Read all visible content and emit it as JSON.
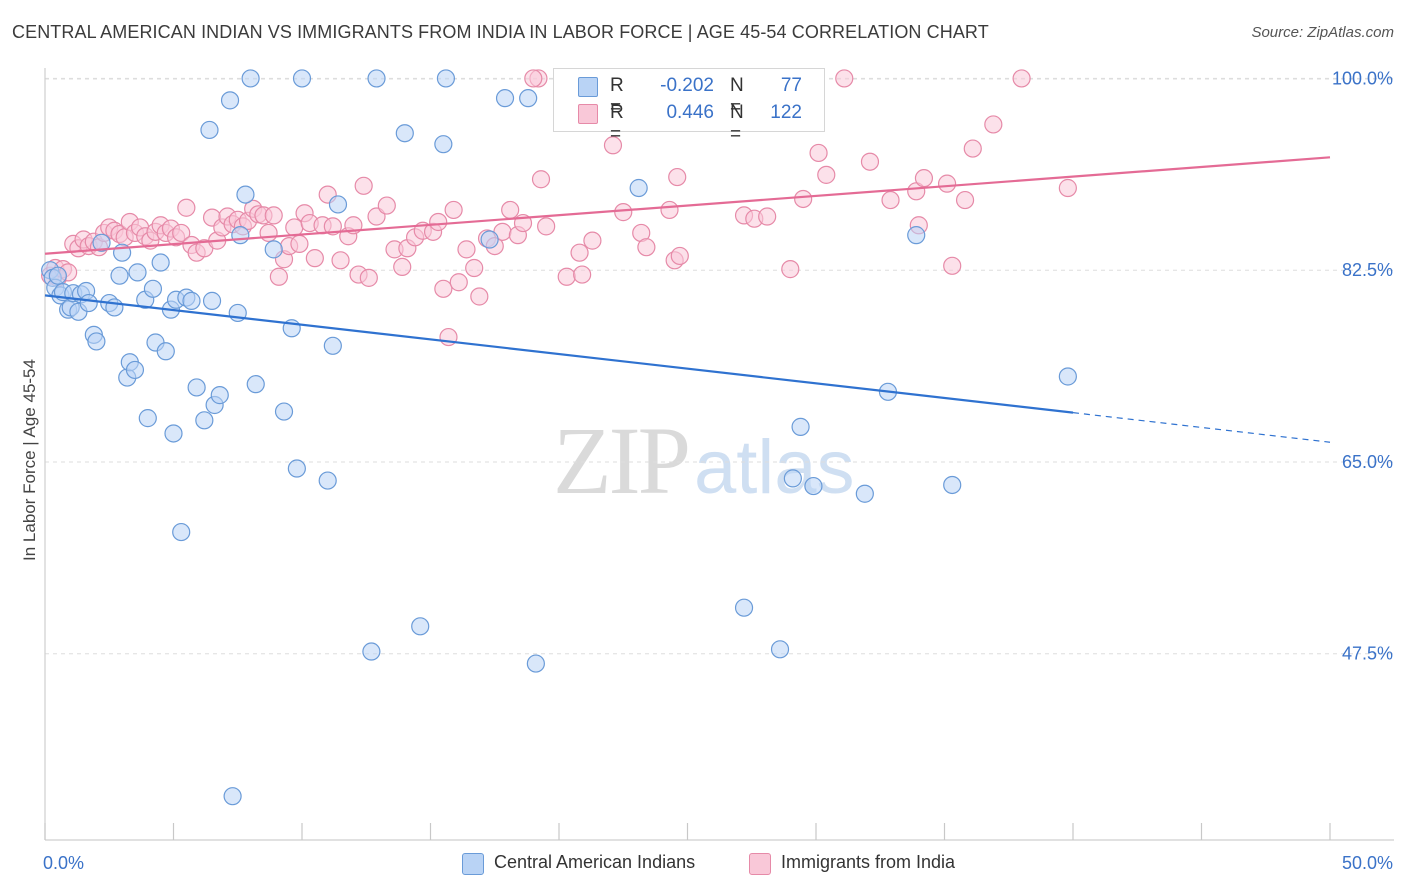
{
  "title": "CENTRAL AMERICAN INDIAN VS IMMIGRANTS FROM INDIA IN LABOR FORCE | AGE 45-54 CORRELATION CHART",
  "source": "Source: ZipAtlas.com",
  "watermark": {
    "zip": "ZIP",
    "atlas": "atlas"
  },
  "colors": {
    "blue_fill": "#b9d3f5",
    "blue_stroke": "#6a9bd8",
    "blue_line": "#2f72d0",
    "pink_fill": "#f9c8d8",
    "pink_stroke": "#e68aa8",
    "pink_line": "#e46b95",
    "axis_label": "#3a72c8",
    "grid": "#dddddd"
  },
  "legend": {
    "r_label": "R =",
    "n_label": "N =",
    "series1": {
      "r": "-0.202",
      "n": "77"
    },
    "series2": {
      "r": "0.446",
      "n": "122"
    }
  },
  "chart_data": {
    "type": "scatter",
    "title": "CENTRAL AMERICAN INDIAN VS IMMIGRANTS FROM INDIA IN LABOR FORCE | AGE 45-54 CORRELATION CHART",
    "xlabel": "",
    "ylabel": "In Labor Force | Age 45-54",
    "xlim": [
      0,
      50
    ],
    "ylim": [
      30.5,
      101.5
    ],
    "x_tick_labels": [
      "0.0%",
      "50.0%"
    ],
    "y_ticks": [
      47.5,
      65.0,
      82.5,
      100.0
    ],
    "y_tick_labels": [
      "47.5%",
      "65.0%",
      "82.5%",
      "100.0%"
    ],
    "grid": true,
    "series": [
      {
        "name": "Central American Indians",
        "r": -0.202,
        "n": 77,
        "trend": {
          "x_start": 0,
          "y_start": 80.2,
          "x_solid_end": 40,
          "y_solid_end": 69.5,
          "x_dash_end": 50,
          "y_dash_end": 66.8
        },
        "points": [
          [
            0.2,
            82.5
          ],
          [
            0.3,
            81.8
          ],
          [
            0.4,
            80.9
          ],
          [
            0.5,
            82.0
          ],
          [
            0.6,
            80.2
          ],
          [
            0.7,
            80.5
          ],
          [
            0.9,
            78.9
          ],
          [
            1.0,
            79.1
          ],
          [
            1.1,
            80.4
          ],
          [
            1.3,
            78.7
          ],
          [
            1.4,
            80.3
          ],
          [
            1.6,
            80.6
          ],
          [
            1.7,
            79.5
          ],
          [
            1.9,
            76.6
          ],
          [
            2.0,
            76.0
          ],
          [
            2.2,
            85.0
          ],
          [
            2.5,
            79.5
          ],
          [
            2.7,
            79.1
          ],
          [
            2.9,
            82.0
          ],
          [
            3.0,
            84.1
          ],
          [
            3.2,
            72.7
          ],
          [
            3.3,
            74.1
          ],
          [
            3.5,
            73.4
          ],
          [
            3.6,
            82.3
          ],
          [
            3.9,
            79.8
          ],
          [
            4.0,
            69.0
          ],
          [
            4.2,
            80.8
          ],
          [
            4.3,
            75.9
          ],
          [
            4.5,
            83.2
          ],
          [
            4.7,
            75.1
          ],
          [
            4.9,
            78.9
          ],
          [
            5.0,
            67.6
          ],
          [
            5.1,
            79.8
          ],
          [
            5.3,
            58.6
          ],
          [
            5.5,
            80.0
          ],
          [
            5.7,
            79.7
          ],
          [
            5.9,
            71.8
          ],
          [
            6.2,
            68.8
          ],
          [
            6.4,
            95.3
          ],
          [
            6.5,
            79.7
          ],
          [
            6.6,
            70.2
          ],
          [
            6.8,
            71.1
          ],
          [
            7.2,
            98.0
          ],
          [
            7.3,
            34.5
          ],
          [
            7.5,
            78.6
          ],
          [
            7.6,
            85.7
          ],
          [
            7.8,
            89.4
          ],
          [
            8.0,
            100.0
          ],
          [
            8.2,
            72.1
          ],
          [
            8.9,
            84.4
          ],
          [
            9.3,
            69.6
          ],
          [
            9.6,
            77.2
          ],
          [
            10.0,
            100.0
          ],
          [
            9.8,
            64.4
          ],
          [
            11.0,
            63.3
          ],
          [
            11.4,
            88.5
          ],
          [
            11.2,
            75.6
          ],
          [
            12.7,
            47.7
          ],
          [
            12.9,
            100.0
          ],
          [
            14.0,
            95.0
          ],
          [
            14.6,
            50.0
          ],
          [
            15.6,
            100.0
          ],
          [
            15.5,
            94.0
          ],
          [
            17.3,
            85.3
          ],
          [
            17.9,
            98.2
          ],
          [
            18.8,
            98.2
          ],
          [
            19.1,
            46.6
          ],
          [
            23.1,
            90.0
          ],
          [
            27.2,
            51.7
          ],
          [
            28.6,
            47.9
          ],
          [
            29.1,
            63.5
          ],
          [
            29.4,
            68.2
          ],
          [
            29.9,
            62.8
          ],
          [
            31.9,
            62.1
          ],
          [
            32.8,
            71.4
          ],
          [
            33.9,
            85.7
          ],
          [
            35.3,
            62.9
          ],
          [
            39.8,
            72.8
          ]
        ]
      },
      {
        "name": "Immigrants from India",
        "r": 0.446,
        "n": 122,
        "trend": {
          "x_start": 0,
          "y_start": 84.0,
          "x_end": 50,
          "y_end": 92.8
        },
        "points": [
          [
            0.2,
            82.0
          ],
          [
            0.4,
            82.7
          ],
          [
            0.5,
            81.8
          ],
          [
            0.7,
            82.6
          ],
          [
            0.9,
            82.3
          ],
          [
            1.1,
            84.9
          ],
          [
            1.3,
            84.5
          ],
          [
            1.5,
            85.3
          ],
          [
            1.7,
            84.7
          ],
          [
            1.9,
            85.1
          ],
          [
            2.1,
            84.6
          ],
          [
            2.3,
            85.9
          ],
          [
            2.5,
            86.4
          ],
          [
            2.7,
            86.1
          ],
          [
            2.9,
            85.8
          ],
          [
            3.1,
            85.5
          ],
          [
            3.3,
            86.9
          ],
          [
            3.5,
            85.9
          ],
          [
            3.7,
            86.4
          ],
          [
            3.9,
            85.6
          ],
          [
            4.1,
            85.2
          ],
          [
            4.3,
            86.0
          ],
          [
            4.5,
            86.6
          ],
          [
            4.7,
            85.9
          ],
          [
            4.9,
            86.3
          ],
          [
            5.1,
            85.5
          ],
          [
            5.3,
            85.9
          ],
          [
            5.5,
            88.2
          ],
          [
            5.7,
            84.8
          ],
          [
            5.9,
            84.1
          ],
          [
            6.2,
            84.5
          ],
          [
            6.5,
            87.3
          ],
          [
            6.7,
            85.2
          ],
          [
            6.9,
            86.4
          ],
          [
            7.1,
            87.4
          ],
          [
            7.3,
            86.7
          ],
          [
            7.5,
            87.1
          ],
          [
            7.7,
            86.5
          ],
          [
            7.9,
            87.0
          ],
          [
            8.1,
            88.1
          ],
          [
            8.3,
            87.6
          ],
          [
            8.5,
            87.5
          ],
          [
            8.7,
            85.9
          ],
          [
            8.9,
            87.5
          ],
          [
            9.1,
            81.9
          ],
          [
            9.3,
            83.5
          ],
          [
            9.5,
            84.7
          ],
          [
            9.7,
            86.4
          ],
          [
            9.9,
            84.9
          ],
          [
            10.1,
            87.7
          ],
          [
            10.3,
            86.8
          ],
          [
            10.5,
            83.6
          ],
          [
            10.8,
            86.6
          ],
          [
            11.0,
            89.4
          ],
          [
            11.2,
            86.5
          ],
          [
            11.5,
            83.4
          ],
          [
            11.8,
            85.6
          ],
          [
            12.0,
            86.6
          ],
          [
            12.2,
            82.1
          ],
          [
            12.4,
            90.2
          ],
          [
            12.6,
            81.8
          ],
          [
            12.9,
            87.4
          ],
          [
            13.3,
            88.4
          ],
          [
            13.6,
            84.4
          ],
          [
            13.9,
            82.8
          ],
          [
            14.1,
            84.5
          ],
          [
            14.4,
            85.5
          ],
          [
            14.7,
            86.1
          ],
          [
            15.1,
            86.0
          ],
          [
            15.3,
            86.9
          ],
          [
            15.5,
            80.8
          ],
          [
            15.7,
            76.4
          ],
          [
            15.9,
            88.0
          ],
          [
            16.1,
            81.4
          ],
          [
            16.4,
            84.4
          ],
          [
            16.7,
            82.7
          ],
          [
            16.9,
            80.1
          ],
          [
            17.2,
            85.4
          ],
          [
            17.5,
            84.7
          ],
          [
            17.8,
            86.0
          ],
          [
            18.1,
            88.0
          ],
          [
            18.4,
            85.7
          ],
          [
            18.6,
            86.8
          ],
          [
            19.2,
            100.0
          ],
          [
            19.0,
            100.0
          ],
          [
            19.3,
            90.8
          ],
          [
            19.5,
            86.5
          ],
          [
            20.3,
            81.9
          ],
          [
            20.8,
            84.1
          ],
          [
            20.9,
            82.1
          ],
          [
            21.3,
            85.2
          ],
          [
            22.1,
            93.9
          ],
          [
            22.5,
            87.8
          ],
          [
            23.2,
            85.9
          ],
          [
            23.4,
            84.6
          ],
          [
            24.3,
            88.0
          ],
          [
            24.6,
            91.0
          ],
          [
            24.5,
            83.4
          ],
          [
            24.7,
            83.8
          ],
          [
            25.3,
            100.0
          ],
          [
            27.2,
            87.5
          ],
          [
            27.6,
            87.2
          ],
          [
            28.1,
            87.4
          ],
          [
            29.0,
            82.6
          ],
          [
            30.1,
            93.2
          ],
          [
            29.5,
            89.0
          ],
          [
            30.4,
            91.2
          ],
          [
            31.1,
            100.0
          ],
          [
            32.1,
            92.4
          ],
          [
            32.9,
            88.9
          ],
          [
            34.0,
            86.6
          ],
          [
            33.9,
            89.7
          ],
          [
            34.2,
            90.9
          ],
          [
            35.1,
            90.4
          ],
          [
            35.8,
            88.9
          ],
          [
            35.3,
            82.9
          ],
          [
            36.1,
            93.6
          ],
          [
            36.9,
            95.8
          ],
          [
            38.0,
            100.0
          ],
          [
            39.8,
            90.0
          ]
        ]
      }
    ]
  }
}
